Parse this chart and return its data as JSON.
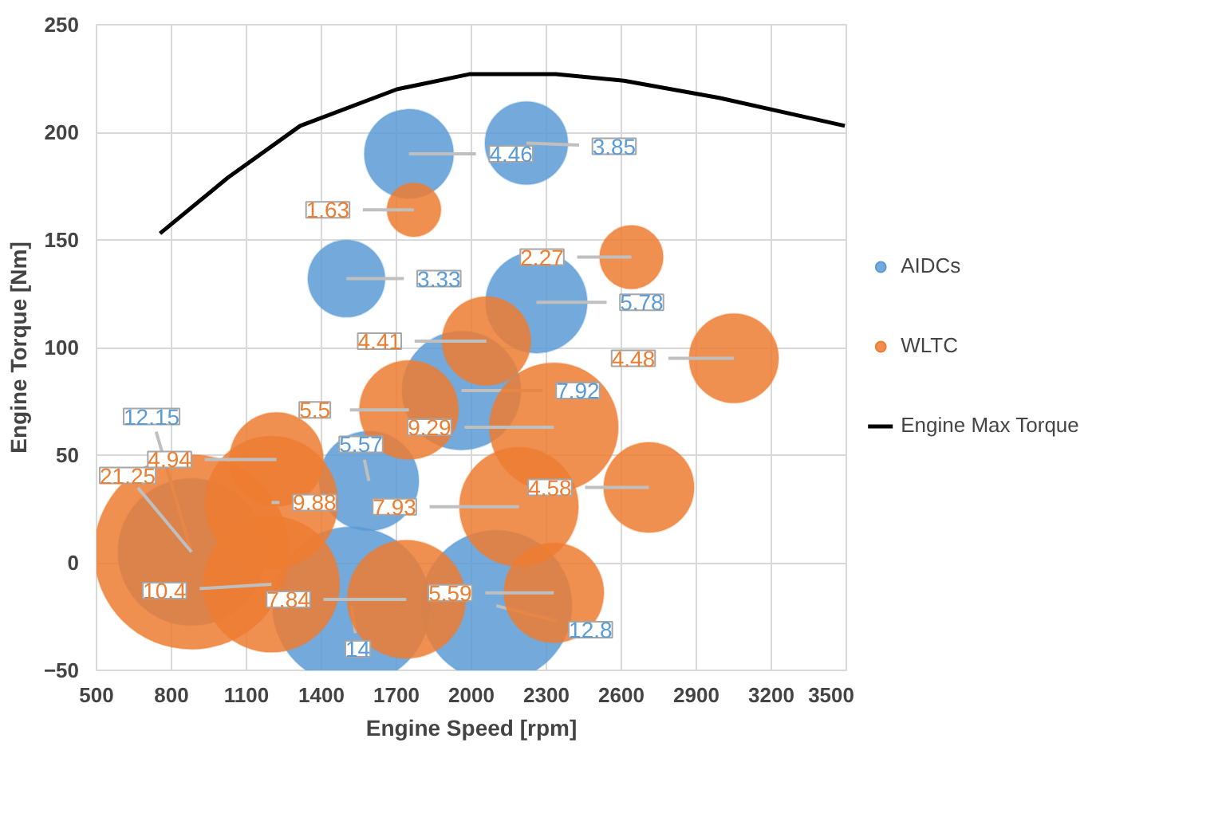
{
  "chart_data": {
    "type": "bubble",
    "xlabel": "Engine Speed [rpm]",
    "ylabel": "Engine Torque [Nm]",
    "xlim": [
      500,
      3500
    ],
    "ylim": [
      -50,
      250
    ],
    "xticks": [
      500,
      800,
      1100,
      1400,
      1700,
      2000,
      2300,
      2600,
      2900,
      3200,
      3500
    ],
    "yticks": [
      -50,
      0,
      50,
      100,
      150,
      200,
      250
    ],
    "grid": true,
    "legend": "right",
    "series": [
      {
        "name": "AIDCs",
        "color": "#5b9bd5",
        "x": [
          1750,
          2220,
          1500,
          2260,
          1960,
          1590,
          1520,
          2100,
          880
        ],
        "values": [
          190,
          195,
          132,
          121,
          80,
          38,
          -20,
          -20,
          5
        ],
        "sizes": [
          4.46,
          3.85,
          3.33,
          5.78,
          7.92,
          5.57,
          14,
          12.8,
          12.15
        ],
        "value_labels": [
          "4.46",
          "3.85",
          "3.33",
          "5.78",
          "7.92",
          "5.57",
          "14",
          "12.8",
          "12.15"
        ]
      },
      {
        "name": "WLTC",
        "color": "#ed7d31",
        "x": [
          1770,
          2640,
          2060,
          3050,
          2710,
          2330,
          2190,
          1750,
          2330,
          1740,
          1200,
          880,
          1220,
          1200
        ],
        "values": [
          164,
          142,
          103,
          95,
          35,
          63,
          26,
          71,
          -14,
          -17,
          -10,
          5,
          48,
          28
        ],
        "sizes": [
          1.63,
          2.27,
          4.41,
          4.48,
          4.58,
          9.29,
          7.93,
          5.5,
          5.59,
          7.84,
          10.4,
          21.25,
          4.94,
          9.88
        ],
        "value_labels": [
          "1.63",
          "2.27",
          "4.41",
          "4.48",
          "4.58",
          "9.29",
          "7.93",
          "5.5",
          "5.59",
          "7.84",
          "10.4",
          "21.25",
          "4.94",
          "9.88"
        ]
      },
      {
        "name": "Engine Max Torque",
        "type": "line",
        "color": "#000000",
        "x": [
          754,
          1026,
          1315,
          1702,
          1991,
          2338,
          2610,
          2991,
          3494
        ],
        "values": [
          153,
          179,
          203,
          220,
          227,
          227,
          224,
          216,
          203
        ]
      }
    ]
  }
}
